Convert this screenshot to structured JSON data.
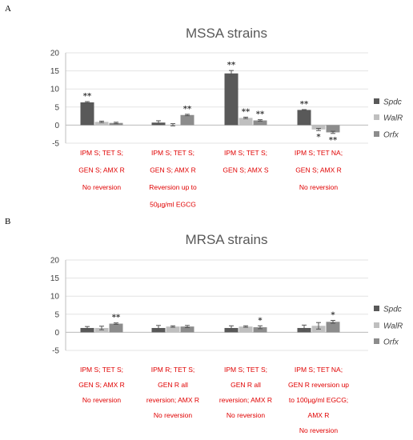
{
  "panels": [
    {
      "letter": "A",
      "chart_data": {
        "type": "bar",
        "title": "MSSA strains",
        "xlabel": "",
        "ylabel": "",
        "ylim": [
          -5,
          20
        ],
        "yticks": [
          -5,
          0,
          5,
          10,
          15,
          20
        ],
        "grid": true,
        "legend_position": "right",
        "categories": [
          [
            "IPM S; TET S;",
            "GEN S; AMX R",
            "No reversion"
          ],
          [
            "IPM S; TET S;",
            "GEN S; AMX R",
            "Reversion up to",
            "50µg/ml EGCG"
          ],
          [
            "IPM S; TET S;",
            "GEN S; AMX S"
          ],
          [
            "IPM S; TET NA;",
            "GEN S; AMX R",
            "No reversion"
          ]
        ],
        "series": [
          {
            "name": "Spdc",
            "color": "#595959",
            "values": [
              6.3,
              0.7,
              14.3,
              4.2
            ],
            "errors": [
              0.2,
              0.5,
              0.8,
              0.1
            ]
          },
          {
            "name": "WalR",
            "color": "#bfbfbf",
            "values": [
              0.9,
              0.1,
              2.0,
              -1.2
            ],
            "errors": [
              0.2,
              0.3,
              0.2,
              0.3
            ]
          },
          {
            "name": "Orfx",
            "color": "#8c8c8c",
            "values": [
              0.6,
              2.8,
              1.3,
              -2.0
            ],
            "errors": [
              0.2,
              0.2,
              0.2,
              0.3
            ]
          }
        ],
        "significance": [
          [
            "**",
            "",
            "",
            ""
          ],
          [
            "",
            "",
            "**",
            ""
          ],
          [
            "**",
            "**",
            "**",
            ""
          ],
          [
            "**",
            "*",
            "**",
            ""
          ]
        ]
      }
    },
    {
      "letter": "B",
      "chart_data": {
        "type": "bar",
        "title": "MRSA strains",
        "xlabel": "",
        "ylabel": "",
        "ylim": [
          -5,
          20
        ],
        "yticks": [
          -5,
          0,
          5,
          10,
          15,
          20
        ],
        "grid": true,
        "legend_position": "right",
        "categories": [
          [
            "IPM S; TET S;",
            "GEN S; AMX R",
            "No reversion"
          ],
          [
            "IPM R; TET S;",
            "GEN R all",
            "reversion; AMX R",
            "No reversion"
          ],
          [
            "IPM S; TET S;",
            "GEN R all",
            "reversion; AMX R",
            "No reversion"
          ],
          [
            "IPM S; TET NA;",
            "GEN R reversion up",
            "to 100µg/ml EGCG;",
            "AMX R",
            "No reversion"
          ]
        ],
        "series": [
          {
            "name": "Spdc",
            "color": "#595959",
            "values": [
              1.2,
              1.2,
              1.2,
              1.2
            ],
            "errors": [
              0.4,
              0.7,
              0.6,
              0.8
            ]
          },
          {
            "name": "WalR",
            "color": "#bfbfbf",
            "values": [
              1.2,
              1.6,
              1.6,
              1.8
            ],
            "errors": [
              0.5,
              0.2,
              0.2,
              0.9
            ]
          },
          {
            "name": "Orfx",
            "color": "#8c8c8c",
            "values": [
              2.4,
              1.6,
              1.4,
              2.9
            ],
            "errors": [
              0.2,
              0.3,
              0.4,
              0.4
            ]
          }
        ],
        "significance": [
          [
            "",
            "",
            "**",
            ""
          ],
          [
            "",
            "",
            "",
            ""
          ],
          [
            "",
            "",
            "*",
            ""
          ],
          [
            "",
            "",
            "*",
            ""
          ]
        ]
      }
    }
  ]
}
